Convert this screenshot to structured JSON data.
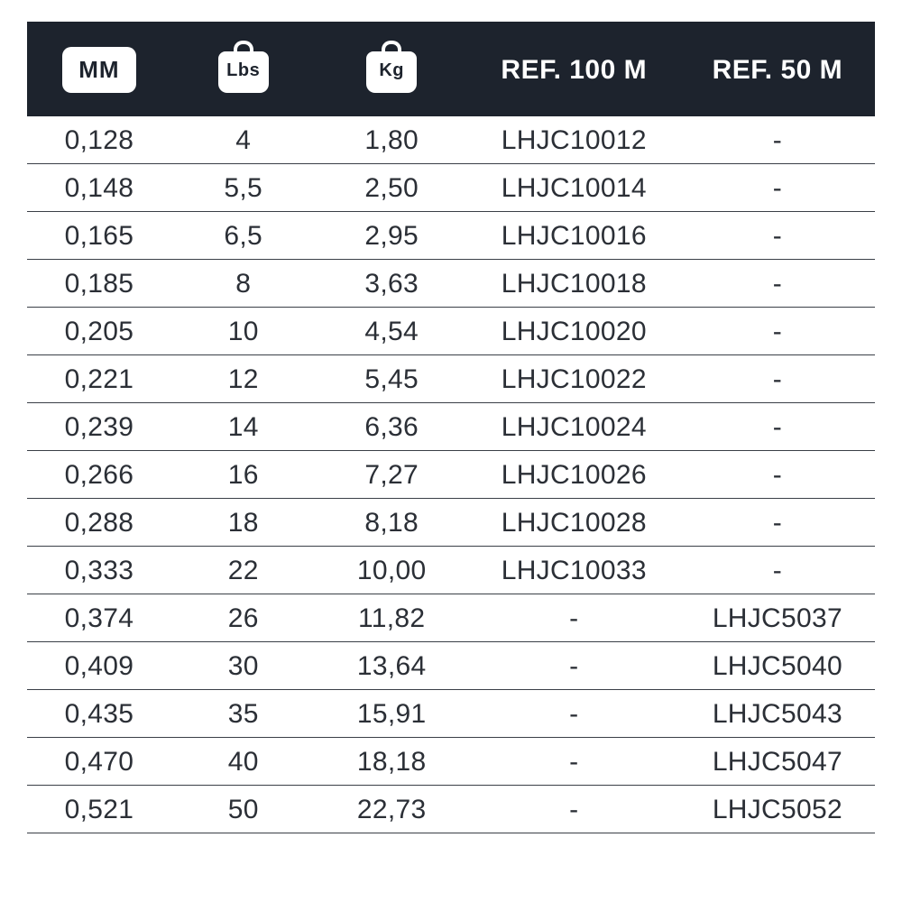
{
  "table": {
    "header": {
      "mm_label": "MM",
      "lbs_icon_label": "Lbs",
      "kg_icon_label": "Kg",
      "ref100_label": "REF. 100 M",
      "ref50_label": "REF. 50 M",
      "bg_color": "#1d232d",
      "text_color": "#ffffff",
      "font_size_pt": 22
    },
    "columns": [
      "mm",
      "lbs",
      "kg",
      "ref100",
      "ref50"
    ],
    "column_widths_pct": [
      17,
      17,
      18,
      25,
      23
    ],
    "row_border_color": "#3a3f47",
    "cell_text_color": "#2b2f36",
    "cell_font_size_pt": 22,
    "rows": [
      {
        "mm": "0,128",
        "lbs": "4",
        "kg": "1,80",
        "ref100": "LHJC10012",
        "ref50": "-"
      },
      {
        "mm": "0,148",
        "lbs": "5,5",
        "kg": "2,50",
        "ref100": "LHJC10014",
        "ref50": "-"
      },
      {
        "mm": "0,165",
        "lbs": "6,5",
        "kg": "2,95",
        "ref100": "LHJC10016",
        "ref50": "-"
      },
      {
        "mm": "0,185",
        "lbs": "8",
        "kg": "3,63",
        "ref100": "LHJC10018",
        "ref50": "-"
      },
      {
        "mm": "0,205",
        "lbs": "10",
        "kg": "4,54",
        "ref100": "LHJC10020",
        "ref50": "-"
      },
      {
        "mm": "0,221",
        "lbs": "12",
        "kg": "5,45",
        "ref100": "LHJC10022",
        "ref50": "-"
      },
      {
        "mm": "0,239",
        "lbs": "14",
        "kg": "6,36",
        "ref100": "LHJC10024",
        "ref50": "-"
      },
      {
        "mm": "0,266",
        "lbs": "16",
        "kg": "7,27",
        "ref100": "LHJC10026",
        "ref50": "-"
      },
      {
        "mm": "0,288",
        "lbs": "18",
        "kg": "8,18",
        "ref100": "LHJC10028",
        "ref50": "-"
      },
      {
        "mm": "0,333",
        "lbs": "22",
        "kg": "10,00",
        "ref100": "LHJC10033",
        "ref50": "-"
      },
      {
        "mm": "0,374",
        "lbs": "26",
        "kg": "11,82",
        "ref100": "-",
        "ref50": "LHJC5037"
      },
      {
        "mm": "0,409",
        "lbs": "30",
        "kg": "13,64",
        "ref100": "-",
        "ref50": "LHJC5040"
      },
      {
        "mm": "0,435",
        "lbs": "35",
        "kg": "15,91",
        "ref100": "-",
        "ref50": "LHJC5043"
      },
      {
        "mm": "0,470",
        "lbs": "40",
        "kg": "18,18",
        "ref100": "-",
        "ref50": "LHJC5047"
      },
      {
        "mm": "0,521",
        "lbs": "50",
        "kg": "22,73",
        "ref100": "-",
        "ref50": "LHJC5052"
      }
    ]
  }
}
